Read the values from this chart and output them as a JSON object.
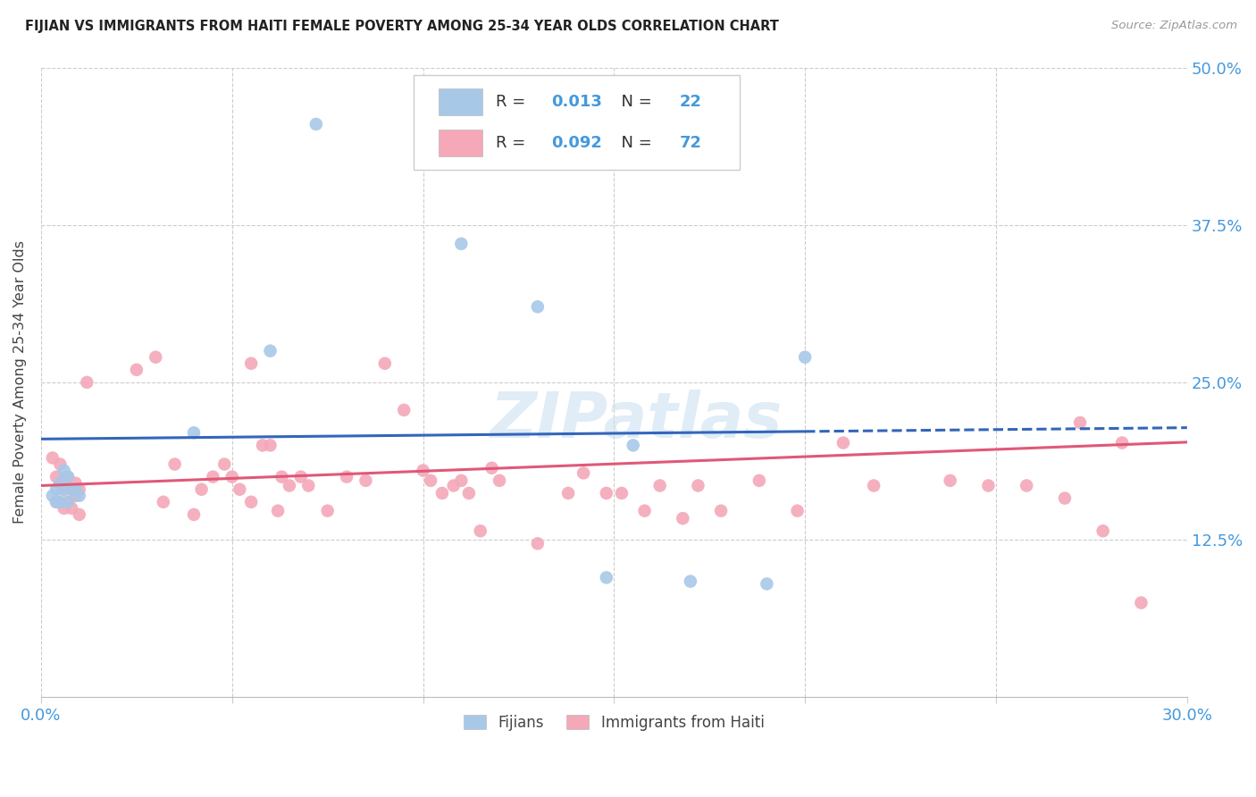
{
  "title": "FIJIAN VS IMMIGRANTS FROM HAITI FEMALE POVERTY AMONG 25-34 YEAR OLDS CORRELATION CHART",
  "source": "Source: ZipAtlas.com",
  "ylabel": "Female Poverty Among 25-34 Year Olds",
  "xlim": [
    0,
    0.3
  ],
  "ylim": [
    0,
    0.5
  ],
  "yticks": [
    0.125,
    0.25,
    0.375,
    0.5
  ],
  "ytick_labels": [
    "12.5%",
    "25.0%",
    "37.5%",
    "50.0%"
  ],
  "xticks": [
    0.0,
    0.05,
    0.1,
    0.15,
    0.2,
    0.25,
    0.3
  ],
  "fijian_R": 0.013,
  "fijian_N": 22,
  "haiti_R": 0.092,
  "haiti_N": 72,
  "blue_color": "#A8C8E8",
  "pink_color": "#F4A8B8",
  "blue_line_color": "#3366BB",
  "pink_line_color": "#E05878",
  "axis_color": "#4499DD",
  "legend_label_fijian": "Fijians",
  "legend_label_haiti": "Immigrants from Haiti",
  "fijian_x": [
    0.003,
    0.004,
    0.004,
    0.005,
    0.005,
    0.006,
    0.006,
    0.007,
    0.007,
    0.008,
    0.009,
    0.01,
    0.04,
    0.06,
    0.072,
    0.11,
    0.13,
    0.148,
    0.155,
    0.17,
    0.19,
    0.2
  ],
  "fijian_y": [
    0.16,
    0.155,
    0.165,
    0.155,
    0.17,
    0.165,
    0.18,
    0.155,
    0.175,
    0.165,
    0.165,
    0.16,
    0.21,
    0.275,
    0.455,
    0.36,
    0.31,
    0.095,
    0.2,
    0.092,
    0.09,
    0.27
  ],
  "haiti_x": [
    0.003,
    0.004,
    0.004,
    0.005,
    0.005,
    0.005,
    0.006,
    0.006,
    0.007,
    0.007,
    0.008,
    0.008,
    0.009,
    0.009,
    0.01,
    0.01,
    0.012,
    0.025,
    0.03,
    0.032,
    0.035,
    0.04,
    0.042,
    0.045,
    0.048,
    0.05,
    0.052,
    0.055,
    0.055,
    0.058,
    0.06,
    0.062,
    0.063,
    0.065,
    0.068,
    0.07,
    0.075,
    0.08,
    0.085,
    0.09,
    0.095,
    0.1,
    0.102,
    0.105,
    0.108,
    0.11,
    0.112,
    0.115,
    0.118,
    0.12,
    0.13,
    0.138,
    0.142,
    0.148,
    0.152,
    0.158,
    0.162,
    0.168,
    0.172,
    0.178,
    0.188,
    0.198,
    0.21,
    0.218,
    0.238,
    0.248,
    0.258,
    0.268,
    0.272,
    0.278,
    0.283,
    0.288
  ],
  "haiti_y": [
    0.19,
    0.155,
    0.175,
    0.155,
    0.17,
    0.185,
    0.15,
    0.165,
    0.155,
    0.175,
    0.15,
    0.165,
    0.16,
    0.17,
    0.145,
    0.165,
    0.25,
    0.26,
    0.27,
    0.155,
    0.185,
    0.145,
    0.165,
    0.175,
    0.185,
    0.175,
    0.165,
    0.265,
    0.155,
    0.2,
    0.2,
    0.148,
    0.175,
    0.168,
    0.175,
    0.168,
    0.148,
    0.175,
    0.172,
    0.265,
    0.228,
    0.18,
    0.172,
    0.162,
    0.168,
    0.172,
    0.162,
    0.132,
    0.182,
    0.172,
    0.122,
    0.162,
    0.178,
    0.162,
    0.162,
    0.148,
    0.168,
    0.142,
    0.168,
    0.148,
    0.172,
    0.148,
    0.202,
    0.168,
    0.172,
    0.168,
    0.168,
    0.158,
    0.218,
    0.132,
    0.202,
    0.075
  ],
  "watermark": "ZIPatlas",
  "background_color": "#FFFFFF",
  "grid_color": "#CCCCCC"
}
